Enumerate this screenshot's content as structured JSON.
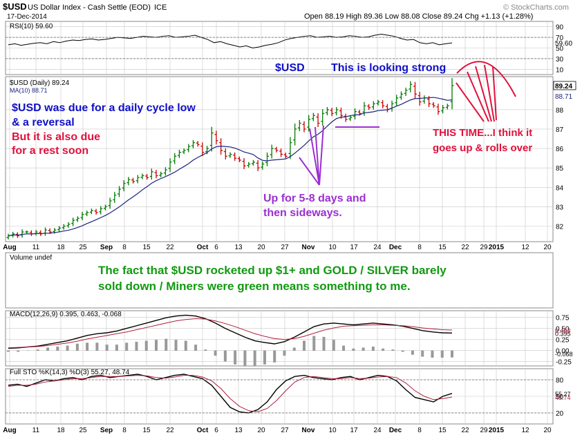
{
  "header": {
    "symbol": "$USD",
    "name": "US Dollar Index - Cash Settle (EOD)",
    "exchange": "ICE",
    "date": "17-Dec-2014",
    "ohlc": "Open 88.19  High 89.36  Low 88.08  Close 89.24  Chg +1.13 (+1.28%)",
    "watermark": "© StockCharts.com"
  },
  "colors": {
    "up": "#007a00",
    "down": "#cc0000",
    "ma": "#1a237e",
    "annot_blue": "#1010c8",
    "annot_red": "#e0103c",
    "annot_purple": "#9b2fd0",
    "annot_green": "#119a11",
    "grid": "#c8c8c8"
  },
  "chart_data": [
    {
      "type": "line",
      "panel": "rsi",
      "title": "RSI(10) 59.60",
      "yticks": [
        90,
        70,
        50,
        30,
        10
      ],
      "last_value_label": "59.60",
      "ylim": [
        0,
        100
      ],
      "values": [
        56,
        58,
        55,
        57,
        59,
        60,
        58,
        62,
        60,
        63,
        65,
        64,
        66,
        67,
        65,
        66,
        68,
        70,
        69,
        68,
        70,
        72,
        71,
        70,
        72,
        73,
        70,
        71,
        72,
        74,
        70,
        66,
        60,
        62,
        58,
        55,
        52,
        54,
        50,
        52,
        55,
        57,
        60,
        65,
        68,
        70,
        72,
        73,
        70,
        71,
        72,
        70,
        71,
        73,
        72,
        70,
        71,
        74,
        76,
        74,
        72,
        68,
        65,
        66,
        60,
        58,
        60,
        56,
        58,
        59.6
      ]
    },
    {
      "type": "bar",
      "panel": "price",
      "title": "$USD (Daily) 89.24",
      "ma_label": "MA(10) 88.71",
      "yticks": [
        82,
        83,
        84,
        85,
        86,
        87,
        88
      ],
      "last_value_label": "89.24",
      "ma_value_label": "88.71",
      "ylim": [
        81.2,
        89.7
      ],
      "x_tick_labels": [
        "Aug",
        "11",
        "18",
        "25",
        "Sep",
        "8",
        "15",
        "22",
        "Oct",
        "6",
        "13",
        "20",
        "27",
        "Nov",
        "10",
        "17",
        "24",
        "Dec",
        "8",
        "15",
        "22",
        "29",
        "2015",
        "12",
        "20"
      ],
      "closes": [
        81.5,
        81.6,
        81.5,
        81.7,
        81.7,
        81.6,
        81.7,
        81.6,
        81.8,
        81.7,
        81.8,
        81.9,
        82.0,
        82.1,
        82.3,
        82.4,
        82.6,
        82.7,
        82.8,
        82.7,
        82.9,
        83.0,
        83.3,
        83.6,
        83.9,
        84.2,
        84.4,
        84.3,
        84.5,
        84.6,
        84.5,
        84.8,
        84.6,
        84.7,
        84.9,
        85.3,
        85.6,
        85.8,
        85.9,
        86.1,
        86.3,
        86.2,
        85.8,
        86.0,
        86.8,
        86.4,
        85.9,
        85.6,
        85.7,
        85.5,
        85.4,
        85.1,
        85.2,
        85.3,
        85.0,
        85.2,
        85.6,
        86.0,
        85.9,
        85.7,
        85.6,
        86.3,
        87.0,
        87.3,
        87.0,
        87.5,
        87.7,
        87.3,
        87.8,
        88.0,
        87.8,
        88.0,
        87.7,
        87.5,
        87.6,
        87.9,
        87.8,
        88.2,
        88.1,
        88.3,
        88.4,
        88.2,
        88.0,
        88.3,
        88.6,
        88.8,
        89.0,
        89.3,
        88.8,
        88.4,
        88.6,
        88.3,
        88.2,
        87.9,
        88.1,
        88.2,
        89.24
      ]
    },
    {
      "type": "bar",
      "panel": "volume",
      "title": "Volume undef"
    },
    {
      "type": "line",
      "panel": "macd",
      "title": "MACD(12,26,9) 0.395, 0.463, -0.068",
      "yticks": [
        0.75,
        0.5,
        0.25,
        0.0,
        -0.25
      ],
      "macd_label": "0.395",
      "signal_label": "0.463",
      "hist_label": "-0.068",
      "ylim": [
        -0.35,
        0.9
      ]
    },
    {
      "type": "line",
      "panel": "sto",
      "title": "Full STO %K(14,3) %D(3) 55.27, 48.74",
      "yticks": [
        80,
        50,
        20
      ],
      "k_label": "55.27",
      "d_label": "48.74",
      "ylim": [
        0,
        100
      ]
    }
  ],
  "annotations": {
    "usd_title": "$USD",
    "looking_strong": "This is looking strong",
    "cycle_line1": "$USD was due for a daily cycle low",
    "cycle_line2": "& a reversal",
    "rest_line1": "But it is also due",
    "rest_line2": "for a rest soon",
    "up_days_line1": "Up for 5-8 days and",
    "up_days_line2": "then sideways.",
    "this_time_line1": "THIS TIME...I think it",
    "this_time_line2": "goes up & rolls over",
    "fact_line1": "The fact that $USD rocketed up $1+ and GOLD / SILVER barely",
    "fact_line2": "sold down / Miners were green means something to me."
  }
}
